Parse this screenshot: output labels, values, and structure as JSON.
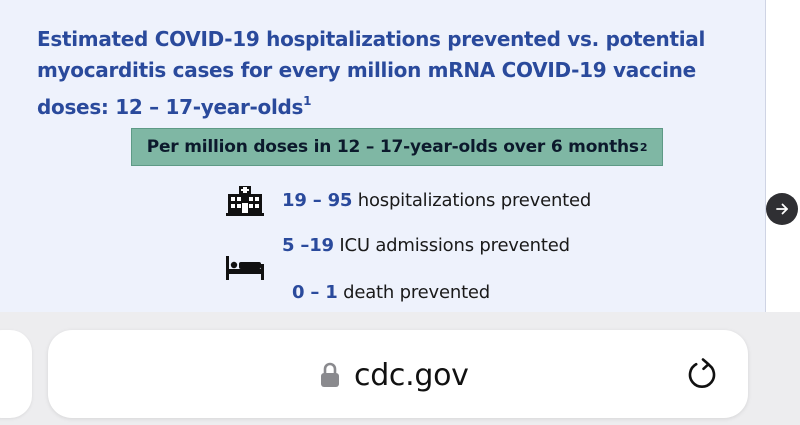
{
  "slide": {
    "title_main": "Estimated COVID-19 hospitalizations prevented vs. potential myocarditis cases for every million mRNA COVID-19 vaccine doses: 12 – 17-year-olds",
    "title_sup": "1",
    "banner_text": "Per million doses in 12 – 17-year-olds over 6 months",
    "banner_sup": "2",
    "stats": [
      {
        "value": "19 – 95",
        "label": " hospitalizations prevented"
      },
      {
        "value": "5 –19",
        "label": " ICU admissions prevented"
      },
      {
        "value": "0 – 1",
        "label": " death prevented"
      }
    ],
    "icons": {
      "hospital": "hospital-icon",
      "bed": "bed-icon",
      "next": "arrow-right-icon"
    }
  },
  "browser": {
    "url": "cdc.gov",
    "icons": {
      "lock": "lock-icon",
      "reload": "reload-icon"
    }
  },
  "colors": {
    "title": "#2a4a9c",
    "banner": "#7fb7a4",
    "slide_bg": "#eef2fc",
    "chrome_bg": "#ededef"
  }
}
